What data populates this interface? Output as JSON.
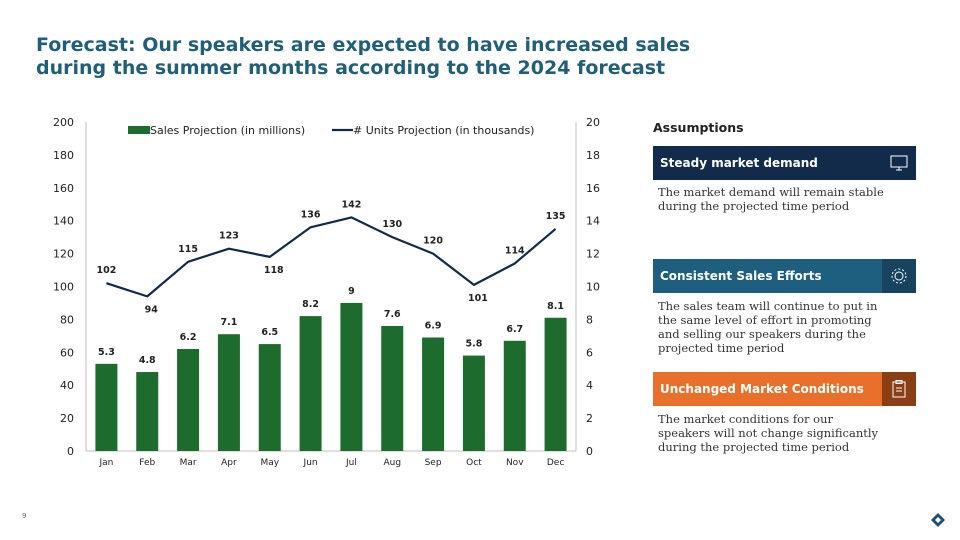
{
  "slide": {
    "title_line1": "Forecast: Our speakers are expected to have increased sales",
    "title_line2": "during the summer months according to the 2024 forecast",
    "page_number": "9"
  },
  "assumptions": {
    "heading": "Assumptions",
    "cards": [
      {
        "label": "Steady market demand",
        "icon": "presentation-board-icon",
        "description": "The market demand will remain stable during the projected time period"
      },
      {
        "label": "Consistent Sales Efforts",
        "icon": "gear-icon",
        "description": "The sales team will continue to put in the same level of effort in promoting and selling our speakers during the projected time period"
      },
      {
        "label": "Unchanged Market Conditions",
        "icon": "clipboard-icon",
        "description": "The market conditions for our speakers will not change significantly during the projected time period"
      }
    ]
  },
  "colors": {
    "bar": "#1e6b2e",
    "line": "#132b4a",
    "title": "#1f5f7a"
  },
  "chart_data": {
    "type": "bar",
    "categories": [
      "Jan",
      "Feb",
      "Mar",
      "Apr",
      "May",
      "Jun",
      "Jul",
      "Aug",
      "Sep",
      "Oct",
      "Nov",
      "Dec"
    ],
    "series": [
      {
        "name": "Sales Projection (in millions)",
        "type": "bar",
        "axis": "right",
        "values": [
          5.3,
          4.8,
          6.2,
          7.1,
          6.5,
          8.2,
          9,
          7.6,
          6.9,
          5.8,
          6.7,
          8.1
        ]
      },
      {
        "name": "# Units Projection (in thousands)",
        "type": "line",
        "axis": "left",
        "values": [
          102,
          94,
          115,
          123,
          118,
          136,
          142,
          130,
          120,
          101,
          114,
          135
        ]
      }
    ],
    "y_left": {
      "min": 0,
      "max": 200,
      "ticks": [
        0,
        20,
        40,
        60,
        80,
        100,
        120,
        140,
        160,
        180,
        200
      ]
    },
    "y_right": {
      "min": 0,
      "max": 20,
      "ticks": [
        0,
        2,
        4,
        6,
        8,
        10,
        12,
        14,
        16,
        18,
        20
      ]
    },
    "legend_position": "top",
    "grid": false
  }
}
